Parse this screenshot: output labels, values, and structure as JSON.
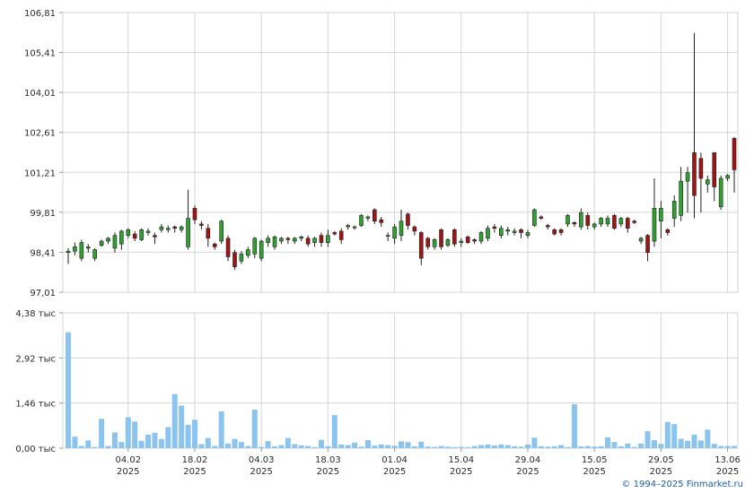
{
  "colors": {
    "up": "#2ea12e",
    "down": "#a01414",
    "volume": "#8cc4f0",
    "grid": "#d5d5d5",
    "axis": "#999999"
  },
  "credit": "© 1994–2025 Finmarket.ru",
  "chart_data": [
    {
      "type": "candlestick",
      "y_ticks": [
        "106,81",
        "105,41",
        "104,01",
        "102,61",
        "101,21",
        "99,81",
        "98,41",
        "97,01"
      ],
      "y_tick_values": [
        106.81,
        105.41,
        104.01,
        102.61,
        101.21,
        99.81,
        98.41,
        97.01
      ],
      "ylim": [
        97.01,
        106.81
      ],
      "x_ticks": [
        {
          "day": "04.02",
          "year": "2025",
          "index": 9
        },
        {
          "day": "18.02",
          "year": "2025",
          "index": 19
        },
        {
          "day": "04.03",
          "year": "2025",
          "index": 29
        },
        {
          "day": "18.03",
          "year": "2025",
          "index": 39
        },
        {
          "day": "01.04",
          "year": "2025",
          "index": 49
        },
        {
          "day": "15.04",
          "year": "2025",
          "index": 59
        },
        {
          "day": "29.04",
          "year": "2025",
          "index": 69
        },
        {
          "day": "15.05",
          "year": "2025",
          "index": 79
        },
        {
          "day": "29.05",
          "year": "2025",
          "index": 89
        },
        {
          "day": "13.06",
          "year": "2025",
          "index": 99
        }
      ],
      "candles": [
        [
          98.4,
          98.45,
          98.0,
          98.55
        ],
        [
          98.45,
          98.6,
          98.3,
          98.75
        ],
        [
          98.2,
          98.75,
          98.1,
          98.85
        ],
        [
          98.55,
          98.6,
          98.4,
          98.7
        ],
        [
          98.2,
          98.5,
          98.1,
          98.55
        ],
        [
          98.65,
          98.8,
          98.6,
          98.85
        ],
        [
          98.8,
          98.9,
          98.7,
          98.95
        ],
        [
          98.55,
          99.0,
          98.4,
          99.1
        ],
        [
          98.7,
          99.15,
          98.5,
          99.2
        ],
        [
          99.0,
          99.2,
          98.9,
          99.25
        ],
        [
          99.05,
          98.9,
          98.8,
          99.15
        ],
        [
          98.85,
          99.2,
          98.8,
          99.25
        ],
        [
          99.1,
          99.15,
          99.0,
          99.25
        ],
        [
          99.0,
          98.95,
          98.7,
          99.1
        ],
        [
          99.2,
          99.3,
          99.1,
          99.4
        ],
        [
          99.2,
          99.25,
          99.1,
          99.35
        ],
        [
          99.3,
          99.25,
          99.1,
          99.35
        ],
        [
          99.2,
          99.3,
          99.1,
          99.35
        ],
        [
          98.6,
          99.6,
          98.5,
          100.6
        ],
        [
          99.95,
          99.55,
          99.4,
          100.05
        ],
        [
          99.4,
          99.35,
          99.2,
          99.5
        ],
        [
          99.25,
          98.9,
          98.6,
          99.4
        ],
        [
          98.7,
          98.6,
          98.5,
          98.75
        ],
        [
          98.8,
          99.5,
          98.7,
          99.55
        ],
        [
          98.9,
          98.25,
          98.1,
          99.0
        ],
        [
          98.4,
          97.9,
          97.8,
          98.5
        ],
        [
          98.1,
          98.35,
          98.0,
          98.45
        ],
        [
          98.3,
          98.5,
          98.2,
          98.6
        ],
        [
          98.35,
          98.9,
          98.2,
          98.95
        ],
        [
          98.2,
          98.8,
          98.1,
          98.85
        ],
        [
          98.75,
          98.9,
          98.6,
          99.0
        ],
        [
          98.6,
          98.95,
          98.5,
          99.0
        ],
        [
          98.8,
          98.9,
          98.7,
          98.95
        ],
        [
          98.9,
          98.85,
          98.7,
          98.95
        ],
        [
          98.8,
          98.9,
          98.7,
          98.95
        ],
        [
          98.9,
          98.95,
          98.8,
          99.0
        ],
        [
          98.9,
          98.7,
          98.6,
          99.0
        ],
        [
          98.75,
          98.9,
          98.6,
          98.95
        ],
        [
          99.0,
          98.75,
          98.6,
          99.1
        ],
        [
          98.75,
          99.0,
          98.6,
          99.2
        ],
        [
          99.1,
          99.05,
          99.0,
          99.15
        ],
        [
          99.15,
          98.85,
          98.7,
          99.25
        ],
        [
          99.3,
          99.35,
          99.2,
          99.4
        ],
        [
          99.3,
          99.3,
          99.2,
          99.35
        ],
        [
          99.35,
          99.7,
          99.3,
          99.75
        ],
        [
          99.6,
          99.65,
          99.5,
          99.7
        ],
        [
          99.9,
          99.5,
          99.4,
          99.95
        ],
        [
          99.55,
          99.45,
          99.3,
          99.65
        ],
        [
          99.0,
          99.0,
          98.8,
          99.1
        ],
        [
          98.9,
          99.3,
          98.7,
          99.4
        ],
        [
          99.0,
          99.5,
          98.8,
          99.9
        ],
        [
          99.75,
          99.35,
          99.2,
          99.8
        ],
        [
          99.3,
          99.15,
          99.0,
          99.35
        ],
        [
          99.1,
          98.2,
          97.95,
          99.15
        ],
        [
          98.9,
          98.6,
          98.5,
          98.95
        ],
        [
          98.6,
          98.85,
          98.5,
          98.9
        ],
        [
          99.2,
          98.6,
          98.5,
          99.25
        ],
        [
          98.65,
          98.85,
          98.6,
          98.9
        ],
        [
          99.2,
          98.7,
          98.6,
          99.25
        ],
        [
          98.75,
          98.8,
          98.6,
          98.9
        ],
        [
          98.95,
          98.75,
          98.7,
          99.0
        ],
        [
          98.85,
          98.8,
          98.7,
          98.9
        ],
        [
          98.8,
          99.1,
          98.7,
          99.15
        ],
        [
          98.9,
          99.25,
          98.8,
          99.35
        ],
        [
          99.3,
          99.25,
          99.1,
          99.4
        ],
        [
          99.0,
          99.25,
          98.9,
          99.35
        ],
        [
          99.15,
          99.2,
          99.0,
          99.3
        ],
        [
          99.1,
          99.15,
          99.0,
          99.25
        ],
        [
          99.2,
          99.1,
          98.9,
          99.25
        ],
        [
          99.0,
          99.1,
          98.9,
          99.2
        ],
        [
          99.35,
          99.9,
          99.3,
          99.95
        ],
        [
          99.65,
          99.6,
          99.55,
          99.7
        ],
        [
          99.35,
          99.3,
          99.2,
          99.4
        ],
        [
          99.2,
          99.05,
          99.0,
          99.25
        ],
        [
          99.2,
          99.1,
          99.0,
          99.25
        ],
        [
          99.4,
          99.7,
          99.3,
          99.75
        ],
        [
          99.45,
          99.4,
          99.3,
          99.5
        ],
        [
          99.3,
          99.8,
          99.2,
          99.95
        ],
        [
          99.7,
          99.35,
          99.2,
          99.8
        ],
        [
          99.3,
          99.4,
          99.2,
          99.45
        ],
        [
          99.4,
          99.6,
          99.3,
          99.65
        ],
        [
          99.4,
          99.6,
          99.3,
          99.7
        ],
        [
          99.7,
          99.25,
          99.2,
          99.75
        ],
        [
          99.4,
          99.6,
          99.3,
          99.65
        ],
        [
          99.6,
          99.25,
          99.1,
          99.65
        ],
        [
          99.5,
          99.45,
          99.4,
          99.55
        ],
        [
          98.8,
          98.9,
          98.7,
          98.95
        ],
        [
          99.0,
          98.4,
          98.1,
          99.05
        ],
        [
          98.8,
          99.95,
          98.6,
          101.0
        ],
        [
          99.5,
          99.95,
          98.9,
          100.2
        ],
        [
          99.2,
          99.1,
          99.0,
          99.25
        ],
        [
          99.6,
          100.2,
          99.3,
          100.4
        ],
        [
          99.7,
          100.9,
          99.5,
          101.4
        ],
        [
          100.9,
          101.2,
          99.8,
          101.4
        ],
        [
          101.9,
          100.4,
          99.6,
          106.1
        ],
        [
          101.7,
          101.0,
          99.8,
          101.9
        ],
        [
          100.8,
          100.95,
          100.5,
          101.1
        ],
        [
          101.9,
          100.7,
          100.2,
          101.9
        ],
        [
          100.0,
          101.0,
          99.9,
          101.1
        ],
        [
          101.0,
          101.1,
          100.9,
          101.15
        ],
        [
          102.4,
          101.3,
          100.5,
          102.45
        ]
      ]
    },
    {
      "type": "bar",
      "series_name": "volume",
      "y_ticks": [
        "4,38 тыс",
        "2,92 тыс",
        "1,46 тыс",
        "0,00 тыс"
      ],
      "y_tick_values": [
        4.38,
        2.92,
        1.46,
        0.0
      ],
      "ylim": [
        0,
        4.38
      ],
      "values": [
        3.75,
        0.37,
        0.07,
        0.25,
        0.04,
        0.95,
        0.07,
        0.51,
        0.2,
        1.0,
        0.86,
        0.24,
        0.44,
        0.5,
        0.3,
        0.68,
        1.75,
        1.38,
        0.76,
        0.92,
        0.13,
        0.33,
        0.07,
        1.19,
        0.15,
        0.3,
        0.2,
        0.07,
        1.25,
        0.04,
        0.23,
        0.06,
        0.1,
        0.33,
        0.13,
        0.09,
        0.07,
        0.03,
        0.27,
        0.06,
        1.07,
        0.12,
        0.1,
        0.18,
        0.05,
        0.26,
        0.08,
        0.12,
        0.1,
        0.08,
        0.22,
        0.2,
        0.06,
        0.21,
        0.05,
        0.04,
        0.07,
        0.05,
        0.03,
        0.04,
        0.03,
        0.07,
        0.1,
        0.12,
        0.09,
        0.12,
        0.1,
        0.06,
        0.05,
        0.12,
        0.34,
        0.06,
        0.05,
        0.06,
        0.1,
        0.04,
        1.42,
        0.06,
        0.07,
        0.05,
        0.06,
        0.35,
        0.2,
        0.06,
        0.15,
        0.04,
        0.15,
        0.55,
        0.26,
        0.14,
        0.85,
        0.78,
        0.3,
        0.24,
        0.44,
        0.25,
        0.6,
        0.14,
        0.07,
        0.07,
        0.07
      ]
    }
  ]
}
